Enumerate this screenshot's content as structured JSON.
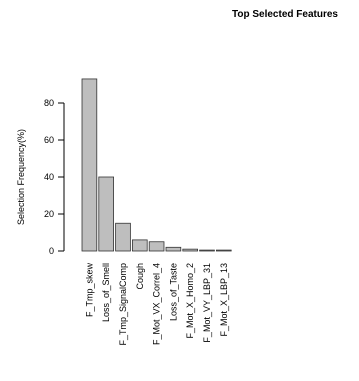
{
  "chart_data": {
    "type": "bar",
    "title": "Top Selected Features",
    "y_label": "Selection Frequency(%)",
    "categories": [
      "F_Tmp_skew",
      "Loss_of_Smell",
      "F_Tmp_SignalComp",
      "Cough",
      "F_Mot_VX_Correl_4",
      "Loss_of_Taste",
      "F_Mot_X_Homo_2",
      "F_Mot_VY_LBP_31",
      "F_Mot_X_LBP_13"
    ],
    "values": [
      93,
      40,
      15,
      6,
      5,
      2,
      1,
      0.5,
      0.5
    ],
    "color": "#bebebe",
    "ylim": [
      0,
      95
    ],
    "yticks": [
      0,
      20,
      40,
      60,
      80
    ],
    "grid": false
  }
}
